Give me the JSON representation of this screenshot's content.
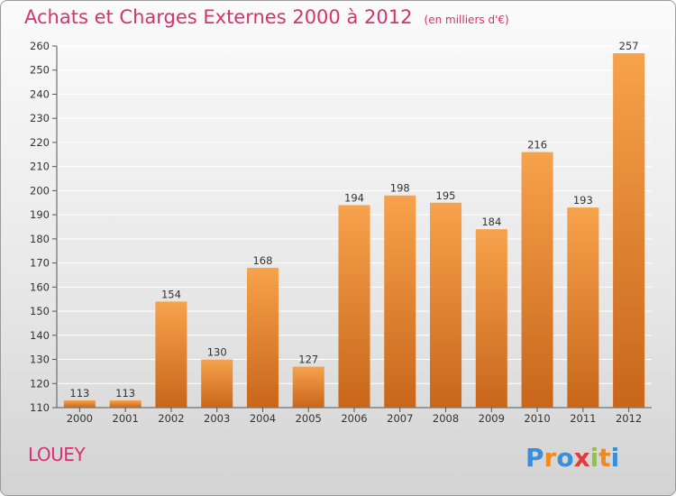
{
  "chart_data": {
    "type": "bar",
    "title": "Achats et Charges Externes 2000 à 2012",
    "subtitle": "(en milliers d'€)",
    "categories": [
      "2000",
      "2001",
      "2002",
      "2003",
      "2004",
      "2005",
      "2006",
      "2007",
      "2008",
      "2009",
      "2010",
      "2011",
      "2012"
    ],
    "values": [
      113,
      113,
      154,
      130,
      168,
      127,
      194,
      198,
      195,
      184,
      216,
      193,
      257
    ],
    "ylim": [
      110,
      260
    ],
    "yticks": [
      110,
      120,
      130,
      140,
      150,
      160,
      170,
      180,
      190,
      200,
      210,
      220,
      230,
      240,
      250,
      260
    ],
    "grid": true,
    "colors": {
      "bar_light": "#f7a24c",
      "bar_dark": "#c8661a",
      "title": "#d6336c"
    }
  },
  "footer": {
    "commune": "LOUEY",
    "logo_text": "Proxiti"
  }
}
